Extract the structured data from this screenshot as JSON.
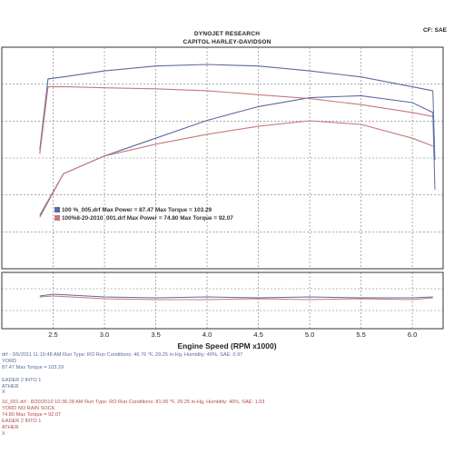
{
  "header": {
    "title": "DYNOJET RESEARCH",
    "subtitle": "CAPITOL HARLEY-DAVIDSON",
    "cf": "CF: SAE"
  },
  "chart_data": {
    "type": "line",
    "xlabel": "Engine Speed (RPM x1000)",
    "xlim": [
      2.0,
      6.3
    ],
    "xticks": [
      "2.5",
      "3.0",
      "3.5",
      "4.0",
      "4.5",
      "5.0",
      "5.5",
      "6.0"
    ],
    "grid": true,
    "legend_position": "left-middle",
    "legend": [
      "100 %_005.drf Max Power = 87.47   Max Torque = 103.29",
      "100%8-20-2010_001.drf Max Power = 74.80   Max Torque = 92.07"
    ],
    "series": [
      {
        "name": "100 %_005.drf",
        "color": "#5b6aa0",
        "torque": {
          "x": [
            2.37,
            2.45,
            2.6,
            3.0,
            3.5,
            4.0,
            4.5,
            5.0,
            5.5,
            6.0,
            6.2
          ],
          "y": [
            60,
            96,
            97,
            100,
            102.5,
            103.29,
            102.5,
            100,
            97,
            92,
            90
          ]
        },
        "power": {
          "x": [
            2.37,
            2.6,
            3.0,
            3.5,
            4.0,
            4.5,
            5.0,
            5.5,
            6.0,
            6.2
          ],
          "y": [
            27,
            48,
            57,
            66,
            75,
            82,
            86.5,
            87.47,
            84,
            79
          ]
        }
      },
      {
        "name": "100%8-20-2010_001.drf",
        "color": "#c87878",
        "torque": {
          "x": [
            2.37,
            2.45,
            2.6,
            3.0,
            3.5,
            4.0,
            4.5,
            5.0,
            5.5,
            6.0,
            6.2
          ],
          "y": [
            58,
            92,
            92.07,
            91.5,
            91,
            90,
            88,
            86,
            83,
            79,
            77
          ]
        },
        "power": {
          "x": [
            2.37,
            2.6,
            3.0,
            3.5,
            4.0,
            4.5,
            5.0,
            5.5,
            6.0,
            6.2
          ],
          "y": [
            26,
            48,
            57,
            63,
            68,
            72,
            74.8,
            73,
            66,
            62
          ]
        }
      }
    ],
    "sub_plot": {
      "series": [
        {
          "name": "100 %_005.drf",
          "color": "#5b6aa0"
        },
        {
          "name": "100%8-20-2010_001.drf",
          "color": "#c87878"
        }
      ]
    }
  },
  "runs": [
    {
      "color": "blue",
      "lines": [
        "drf - 3/5/2011 11:15:48 AM   Run Type: RO   Run Conditions: 46.76 °F, 29.25 in-Hg,  Humidity:  40%, SAE: 0.97",
        "YORD",
        "87.47   Max Torque = 103.29",
        "",
        "EADER 2 INTO 1",
        "ATHER",
        "X"
      ]
    },
    {
      "color": "red",
      "lines": [
        "10_001.drf - 8/20/2010 10:36:28 AM   Run Type: RO   Run Conditions: 81.05 °F, 29.25 in-Hg,  Humidity:  46%, SAE: 1.03",
        "YORD NO RAIN SOCK",
        "74.80   Max Torque = 92.07",
        "EADER 2 INTO 1",
        "ATHER",
        "X"
      ]
    }
  ]
}
